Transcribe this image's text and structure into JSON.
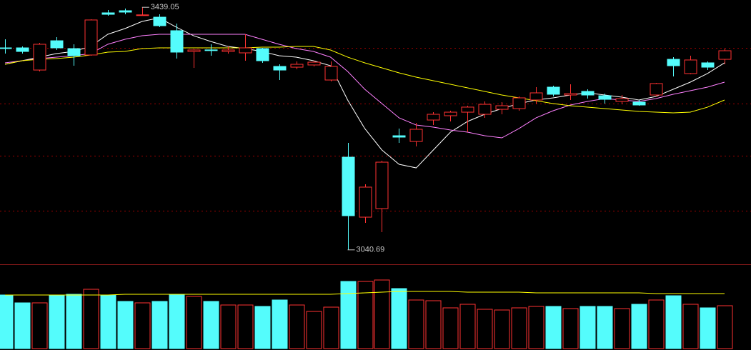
{
  "chart_data": [
    {
      "type": "candlestick",
      "open": [
        3372.4,
        3372.4,
        3336.0,
        3384.1,
        3371.2,
        3360.7,
        3429.9,
        3433.4,
        3426.4,
        3422.8,
        3400.6,
        3366.5,
        3369.1,
        3366.5,
        3364.2,
        3371.2,
        3341.9,
        3340.7,
        3344.3,
        3319.6,
        3192.9,
        3094.4,
        3108.5,
        3228.1,
        3218.7,
        3253.9,
        3261.0,
        3266.8,
        3263.3,
        3271.5,
        3272.7,
        3286.8,
        3307.9,
        3295.0,
        3300.9,
        3293.8,
        3284.4,
        3283.3,
        3295.0,
        3353.6,
        3330.2,
        3347.8,
        3353.6
      ],
      "high": [
        3386.5,
        3374.8,
        3380.6,
        3390.0,
        3378.3,
        3419.3,
        3434.6,
        3436.9,
        3439.05,
        3427.5,
        3412.3,
        3370.1,
        3378.3,
        3374.8,
        3394.7,
        3372.4,
        3345.4,
        3350.1,
        3351.3,
        3350.1,
        3216.4,
        3148.4,
        3187.1,
        3239.9,
        3249.2,
        3266.8,
        3269.2,
        3277.4,
        3284.4,
        3283.3,
        3292.6,
        3307.9,
        3310.2,
        3312.6,
        3304.4,
        3297.3,
        3295.0,
        3286.8,
        3314.9,
        3357.2,
        3359.5,
        3350.1,
        3371.2
      ],
      "low": [
        3363.0,
        3363.0,
        3333.7,
        3368.9,
        3343.1,
        3359.5,
        3425.2,
        3427.5,
        3425.2,
        3406.4,
        3354.8,
        3339.6,
        3359.5,
        3363.0,
        3351.3,
        3347.8,
        3319.6,
        3337.2,
        3341.9,
        3317.3,
        3040.69,
        3085.0,
        3069.8,
        3216.4,
        3210.5,
        3245.7,
        3251.6,
        3234.0,
        3257.5,
        3263.3,
        3269.2,
        3280.9,
        3292.6,
        3286.8,
        3289.1,
        3280.9,
        3279.7,
        3277.4,
        3292.6,
        3325.5,
        3329.0,
        3336.0,
        3345.4
      ],
      "close": [
        3372.0,
        3366.5,
        3378.3,
        3372.4,
        3359.5,
        3418.2,
        3427.5,
        3431.1,
        3426.6,
        3408.8,
        3365.4,
        3368.9,
        3368.9,
        3368.9,
        3372.4,
        3351.3,
        3336.0,
        3345.4,
        3348.9,
        3341.9,
        3096.8,
        3143.7,
        3184.7,
        3225.8,
        3238.7,
        3263.3,
        3266.8,
        3275.1,
        3279.7,
        3277.4,
        3290.3,
        3298.5,
        3296.2,
        3297.3,
        3295.0,
        3287.9,
        3289.1,
        3278.6,
        3313.8,
        3343.1,
        3352.5,
        3340.7,
        3367.7
      ],
      "up_color": "#ff3232",
      "down_color": "#54fcfc",
      "ylim": [
        3017,
        3451
      ],
      "gridlines": [
        3372.4,
        3280.9,
        3195.3,
        3105.0
      ],
      "grid_color": "#a00000",
      "series": [
        {
          "color": "#ffffff",
          "values": [
            3345.4,
            3351.3,
            3357.2,
            3363.0,
            3366.5,
            3374.8,
            3394.7,
            3404.1,
            3415.8,
            3421.7,
            3406.4,
            3392.4,
            3383.0,
            3374.8,
            3371.2,
            3366.5,
            3359.5,
            3357.2,
            3351.3,
            3343.1,
            3286.8,
            3239.9,
            3204.7,
            3181.2,
            3175.3,
            3204.7,
            3234.0,
            3251.6,
            3263.3,
            3272.7,
            3280.9,
            3286.8,
            3290.3,
            3295.0,
            3298.5,
            3295.0,
            3291.5,
            3286.8,
            3292.6,
            3304.4,
            3316.1,
            3330.2,
            3347.8
          ]
        },
        {
          "color": "#ff80ff",
          "values": [
            3347.8,
            3351.3,
            3354.8,
            3357.2,
            3359.5,
            3363.0,
            3378.3,
            3386.5,
            3392.4,
            3394.7,
            3394.7,
            3394.7,
            3394.7,
            3394.7,
            3394.7,
            3386.5,
            3378.3,
            3371.2,
            3366.5,
            3357.2,
            3333.7,
            3304.4,
            3280.9,
            3257.5,
            3245.7,
            3242.2,
            3237.5,
            3234.0,
            3228.1,
            3224.6,
            3239.9,
            3257.5,
            3269.2,
            3278.6,
            3284.4,
            3289.1,
            3286.8,
            3284.4,
            3289.1,
            3296.2,
            3302.0,
            3307.9,
            3316.1
          ]
        },
        {
          "color": "#ffff00",
          "values": [
            3345.4,
            3351.3,
            3353.6,
            3354.8,
            3357.2,
            3360.7,
            3365.4,
            3366.5,
            3371.2,
            3372.4,
            3372.4,
            3372.4,
            3372.4,
            3372.4,
            3372.4,
            3373.6,
            3373.6,
            3374.8,
            3374.8,
            3368.9,
            3357.2,
            3347.8,
            3339.6,
            3331.4,
            3324.3,
            3318.5,
            3312.6,
            3306.7,
            3300.9,
            3295.0,
            3290.3,
            3285.6,
            3280.9,
            3277.4,
            3275.0,
            3272.7,
            3270.4,
            3268.0,
            3266.8,
            3265.7,
            3266.8,
            3275.0,
            3286.8
          ]
        }
      ]
    },
    {
      "type": "bar",
      "values": [
        75,
        64,
        64,
        74,
        76,
        83,
        75,
        66,
        64,
        66,
        75,
        73,
        66,
        61,
        61,
        59,
        68,
        61,
        52,
        58,
        94,
        94,
        96,
        84,
        68,
        67,
        57,
        62,
        55,
        54,
        57,
        59,
        59,
        56,
        59,
        59,
        56,
        62,
        68,
        74,
        62,
        57,
        60
      ],
      "ylim": [
        0,
        100
      ],
      "series": [
        {
          "color": "#ffff00",
          "values": [
            75,
            75,
            75,
            75,
            75,
            75,
            75,
            76,
            76,
            76,
            76,
            76,
            76,
            76,
            76,
            76,
            76,
            76,
            76,
            76,
            77,
            78,
            79,
            80,
            80,
            80,
            80,
            79,
            79,
            79,
            79,
            78,
            78,
            78,
            78,
            78,
            78,
            78,
            77,
            77,
            77,
            77,
            77
          ]
        }
      ]
    }
  ]
}
